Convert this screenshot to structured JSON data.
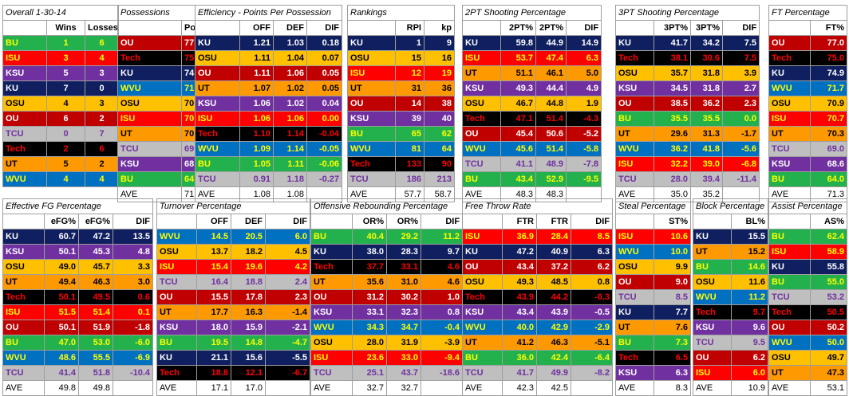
{
  "teams": {
    "BU": {
      "bg": "#22b14c",
      "fg": "#ffff00"
    },
    "ISU": {
      "bg": "#ff0000",
      "fg": "#ffff00"
    },
    "KSU": {
      "bg": "#7030a0",
      "fg": "#ffffff"
    },
    "KU": {
      "bg": "#0f1f5f",
      "fg": "#ffffff"
    },
    "OSU": {
      "bg": "#ffc000",
      "fg": "#000000"
    },
    "OU": {
      "bg": "#c00000",
      "fg": "#ffffff"
    },
    "TCU": {
      "bg": "#bfbfbf",
      "fg": "#7030a0"
    },
    "Tech": {
      "bg": "#000000",
      "fg": "#ff0000"
    },
    "UT": {
      "bg": "#ff9900",
      "fg": "#000000"
    },
    "WVU": {
      "bg": "#0070c0",
      "fg": "#ffff00"
    }
  },
  "overall": {
    "title": "Overall 1-30-14",
    "headers": [
      "",
      "Wins",
      "Losses"
    ],
    "rows": [
      [
        "BU",
        "1",
        "6"
      ],
      [
        "ISU",
        "3",
        "4"
      ],
      [
        "KSU",
        "5",
        "3"
      ],
      [
        "KU",
        "7",
        "0"
      ],
      [
        "OSU",
        "4",
        "3"
      ],
      [
        "OU",
        "6",
        "2"
      ],
      [
        "TCU",
        "0",
        "7"
      ],
      [
        "Tech",
        "2",
        "6"
      ],
      [
        "UT",
        "5",
        "2"
      ],
      [
        "WVU",
        "4",
        "4"
      ]
    ]
  },
  "tables": [
    {
      "key": "poss",
      "title": "Possessions",
      "headers": [
        "",
        "Poss"
      ],
      "rows": [
        [
          "OU",
          "77.5"
        ],
        [
          "Tech",
          "75.0"
        ],
        [
          "KU",
          "74.9"
        ],
        [
          "WVU",
          "71.7"
        ],
        [
          "OSU",
          "70.9"
        ],
        [
          "ISU",
          "70.7"
        ],
        [
          "UT",
          "70.3"
        ],
        [
          "TCU",
          "69.0"
        ],
        [
          "KSU",
          "68.6"
        ],
        [
          "BU",
          "64.0"
        ]
      ],
      "ave": [
        "AVE",
        "71.3"
      ]
    },
    {
      "key": "eff",
      "title": "Efficiency - Points Per Possession",
      "headers": [
        "",
        "OFF",
        "DEF",
        "DIF"
      ],
      "rows": [
        [
          "KU",
          "1.21",
          "1.03",
          "0.18"
        ],
        [
          "OSU",
          "1.11",
          "1.04",
          "0.07"
        ],
        [
          "OU",
          "1.11",
          "1.06",
          "0.05"
        ],
        [
          "UT",
          "1.07",
          "1.02",
          "0.05"
        ],
        [
          "KSU",
          "1.06",
          "1.02",
          "0.04"
        ],
        [
          "ISU",
          "1.06",
          "1.06",
          "0.00"
        ],
        [
          "Tech",
          "1.10",
          "1.14",
          "-0.04"
        ],
        [
          "WVU",
          "1.09",
          "1.14",
          "-0.05"
        ],
        [
          "BU",
          "1.05",
          "1.11",
          "-0.06"
        ],
        [
          "TCU",
          "0.91",
          "1.18",
          "-0.27"
        ]
      ],
      "ave": [
        "AVE",
        "1.08",
        "1.08",
        ""
      ]
    },
    {
      "key": "rank",
      "title": "Rankings",
      "headers": [
        "",
        "RPI",
        "kp"
      ],
      "rows": [
        [
          "KU",
          "1",
          "9"
        ],
        [
          "OSU",
          "15",
          "16"
        ],
        [
          "ISU",
          "12",
          "19"
        ],
        [
          "UT",
          "31",
          "36"
        ],
        [
          "OU",
          "14",
          "38"
        ],
        [
          "KSU",
          "39",
          "40"
        ],
        [
          "BU",
          "65",
          "62"
        ],
        [
          "WVU",
          "81",
          "64"
        ],
        [
          "Tech",
          "133",
          "90"
        ],
        [
          "TCU",
          "186",
          "213"
        ]
      ],
      "ave": [
        "AVE",
        "57.7",
        "58.7"
      ]
    },
    {
      "key": "p2",
      "title": "2PT Shooting Percentage",
      "headers": [
        "",
        "2PT%",
        "2PT%",
        "DIF"
      ],
      "rows": [
        [
          "KU",
          "59.8",
          "44.9",
          "14.9"
        ],
        [
          "ISU",
          "53.7",
          "47.4",
          "6.3"
        ],
        [
          "UT",
          "51.1",
          "46.1",
          "5.0"
        ],
        [
          "KSU",
          "49.3",
          "44.4",
          "4.9"
        ],
        [
          "OSU",
          "46.7",
          "44.8",
          "1.9"
        ],
        [
          "Tech",
          "47.1",
          "51.4",
          "-4.3"
        ],
        [
          "OU",
          "45.4",
          "50.6",
          "-5.2"
        ],
        [
          "WVU",
          "45.6",
          "51.4",
          "-5.8"
        ],
        [
          "TCU",
          "41.1",
          "48.9",
          "-7.8"
        ],
        [
          "BU",
          "43.4",
          "52.9",
          "-9.5"
        ]
      ],
      "ave": [
        "AVE",
        "48.3",
        "48.3",
        ""
      ]
    },
    {
      "key": "p3",
      "title": "3PT Shooting Percentage",
      "headers": [
        "",
        "3PT%",
        "3PT%",
        "DIF"
      ],
      "rows": [
        [
          "KU",
          "41.7",
          "34.2",
          "7.5"
        ],
        [
          "Tech",
          "38.1",
          "30.6",
          "7.5"
        ],
        [
          "OSU",
          "35.7",
          "31.8",
          "3.9"
        ],
        [
          "KSU",
          "34.5",
          "31.8",
          "2.7"
        ],
        [
          "OU",
          "38.5",
          "36.2",
          "2.3"
        ],
        [
          "BU",
          "35.5",
          "35.5",
          "0.0"
        ],
        [
          "UT",
          "29.6",
          "31.3",
          "-1.7"
        ],
        [
          "WVU",
          "36.2",
          "41.8",
          "-5.6"
        ],
        [
          "ISU",
          "32.2",
          "39.0",
          "-6.8"
        ],
        [
          "TCU",
          "28.0",
          "39.4",
          "-11.4"
        ]
      ],
      "ave": [
        "AVE",
        "35.0",
        "35.2",
        ""
      ]
    },
    {
      "key": "ft",
      "title": "FT Percentage",
      "headers": [
        "",
        "FT%"
      ],
      "rows": [
        [
          "OU",
          "77.0"
        ],
        [
          "Tech",
          "75.0"
        ],
        [
          "KU",
          "74.9"
        ],
        [
          "WVU",
          "71.7"
        ],
        [
          "OSU",
          "70.9"
        ],
        [
          "ISU",
          "70.7"
        ],
        [
          "UT",
          "70.3"
        ],
        [
          "TCU",
          "69.0"
        ],
        [
          "KSU",
          "68.6"
        ],
        [
          "BU",
          "64.0"
        ]
      ],
      "ave": [
        "AVE",
        "71.3"
      ]
    },
    {
      "key": "efg",
      "title": "Effective FG Percentage",
      "headers": [
        "",
        "eFG%",
        "eFG%",
        "DIF"
      ],
      "rows": [
        [
          "KU",
          "60.7",
          "47.2",
          "13.5"
        ],
        [
          "KSU",
          "50.1",
          "45.3",
          "4.8"
        ],
        [
          "OSU",
          "49.0",
          "45.7",
          "3.3"
        ],
        [
          "UT",
          "49.4",
          "46.3",
          "3.0"
        ],
        [
          "Tech",
          "50.1",
          "49.5",
          "0.6"
        ],
        [
          "ISU",
          "51.5",
          "51.4",
          "0.1"
        ],
        [
          "OU",
          "50.1",
          "51.9",
          "-1.8"
        ],
        [
          "BU",
          "47.0",
          "53.0",
          "-6.0"
        ],
        [
          "WVU",
          "48.6",
          "55.5",
          "-6.9"
        ],
        [
          "TCU",
          "41.4",
          "51.8",
          "-10.4"
        ]
      ],
      "ave": [
        "AVE",
        "49.8",
        "49.8",
        ""
      ]
    },
    {
      "key": "to",
      "title": "Turnover Percentage",
      "headers": [
        "",
        "OFF",
        "DEF",
        "DIF"
      ],
      "rows": [
        [
          "WVU",
          "14.5",
          "20.5",
          "6.0"
        ],
        [
          "OSU",
          "13.7",
          "18.2",
          "4.5"
        ],
        [
          "ISU",
          "15.4",
          "19.6",
          "4.2"
        ],
        [
          "TCU",
          "16.4",
          "18.8",
          "2.4"
        ],
        [
          "OU",
          "15.5",
          "17.8",
          "2.3"
        ],
        [
          "UT",
          "17.7",
          "16.3",
          "-1.4"
        ],
        [
          "KSU",
          "18.0",
          "15.9",
          "-2.1"
        ],
        [
          "BU",
          "19.5",
          "14.8",
          "-4.7"
        ],
        [
          "KU",
          "21.1",
          "15.6",
          "-5.5"
        ],
        [
          "Tech",
          "18.8",
          "12.1",
          "-6.7"
        ]
      ],
      "ave": [
        "AVE",
        "17.1",
        "17.0",
        ""
      ]
    },
    {
      "key": "oreb",
      "title": "Offensive Rebounding Percentage",
      "headers": [
        "",
        "OR%",
        "OR%",
        "DIF"
      ],
      "rows": [
        [
          "BU",
          "40.4",
          "29.2",
          "11.2"
        ],
        [
          "KU",
          "38.0",
          "28.3",
          "9.7"
        ],
        [
          "Tech",
          "37.7",
          "33.1",
          "4.6"
        ],
        [
          "UT",
          "35.6",
          "31.0",
          "4.6"
        ],
        [
          "OU",
          "31.2",
          "30.2",
          "1.0"
        ],
        [
          "KSU",
          "33.1",
          "32.3",
          "0.8"
        ],
        [
          "WVU",
          "34.3",
          "34.7",
          "-0.4"
        ],
        [
          "OSU",
          "28.0",
          "31.9",
          "-3.9"
        ],
        [
          "ISU",
          "23.6",
          "33.0",
          "-9.4"
        ],
        [
          "TCU",
          "25.1",
          "43.7",
          "-18.6"
        ]
      ],
      "ave": [
        "AVE",
        "32.7",
        "32.7",
        ""
      ]
    },
    {
      "key": "ftr",
      "title": "Free Throw Rate",
      "headers": [
        "",
        "FTR",
        "FTR",
        "DIF"
      ],
      "rows": [
        [
          "ISU",
          "36.9",
          "28.4",
          "8.5"
        ],
        [
          "KU",
          "47.2",
          "40.9",
          "6.3"
        ],
        [
          "OU",
          "43.4",
          "37.2",
          "6.2"
        ],
        [
          "OSU",
          "49.3",
          "48.5",
          "0.8"
        ],
        [
          "Tech",
          "43.9",
          "44.2",
          "-0.3"
        ],
        [
          "KSU",
          "43.4",
          "43.9",
          "-0.5"
        ],
        [
          "WVU",
          "40.0",
          "42.9",
          "-2.9"
        ],
        [
          "UT",
          "41.2",
          "46.3",
          "-5.1"
        ],
        [
          "BU",
          "36.0",
          "42.4",
          "-6.4"
        ],
        [
          "TCU",
          "41.7",
          "49.9",
          "-8.2"
        ]
      ],
      "ave": [
        "AVE",
        "42.3",
        "42.5",
        ""
      ]
    },
    {
      "key": "stl",
      "title": "Steal Percentage",
      "headers": [
        "",
        "ST%"
      ],
      "rows": [
        [
          "ISU",
          "10.6"
        ],
        [
          "WVU",
          "10.0"
        ],
        [
          "OSU",
          "9.9"
        ],
        [
          "OU",
          "9.0"
        ],
        [
          "TCU",
          "8.5"
        ],
        [
          "KU",
          "7.7"
        ],
        [
          "UT",
          "7.6"
        ],
        [
          "BU",
          "7.3"
        ],
        [
          "Tech",
          "6.5"
        ],
        [
          "KSU",
          "6.3"
        ]
      ],
      "ave": [
        "AVE",
        "8.3"
      ]
    },
    {
      "key": "blk",
      "title": "Block Percentage",
      "headers": [
        "",
        "BL%"
      ],
      "rows": [
        [
          "KU",
          "15.5"
        ],
        [
          "UT",
          "15.2"
        ],
        [
          "BU",
          "14.6"
        ],
        [
          "OSU",
          "11.6"
        ],
        [
          "WVU",
          "11.2"
        ],
        [
          "Tech",
          "9.7"
        ],
        [
          "KSU",
          "9.6"
        ],
        [
          "TCU",
          "9.5"
        ],
        [
          "OU",
          "6.2"
        ],
        [
          "ISU",
          "6.0"
        ]
      ],
      "ave": [
        "AVE",
        "10.9"
      ]
    },
    {
      "key": "ast",
      "title": "Assist Percentage",
      "headers": [
        "",
        "AS%"
      ],
      "rows": [
        [
          "BU",
          "62.4"
        ],
        [
          "ISU",
          "58.9"
        ],
        [
          "KU",
          "55.8"
        ],
        [
          "BU",
          "55.0"
        ],
        [
          "TCU",
          "53.2"
        ],
        [
          "Tech",
          "50.5"
        ],
        [
          "OU",
          "50.2"
        ],
        [
          "WVU",
          "50.0"
        ],
        [
          "OSU",
          "49.7"
        ],
        [
          "UT",
          "47.3"
        ]
      ],
      "ave": [
        "AVE",
        "53.1"
      ]
    }
  ]
}
